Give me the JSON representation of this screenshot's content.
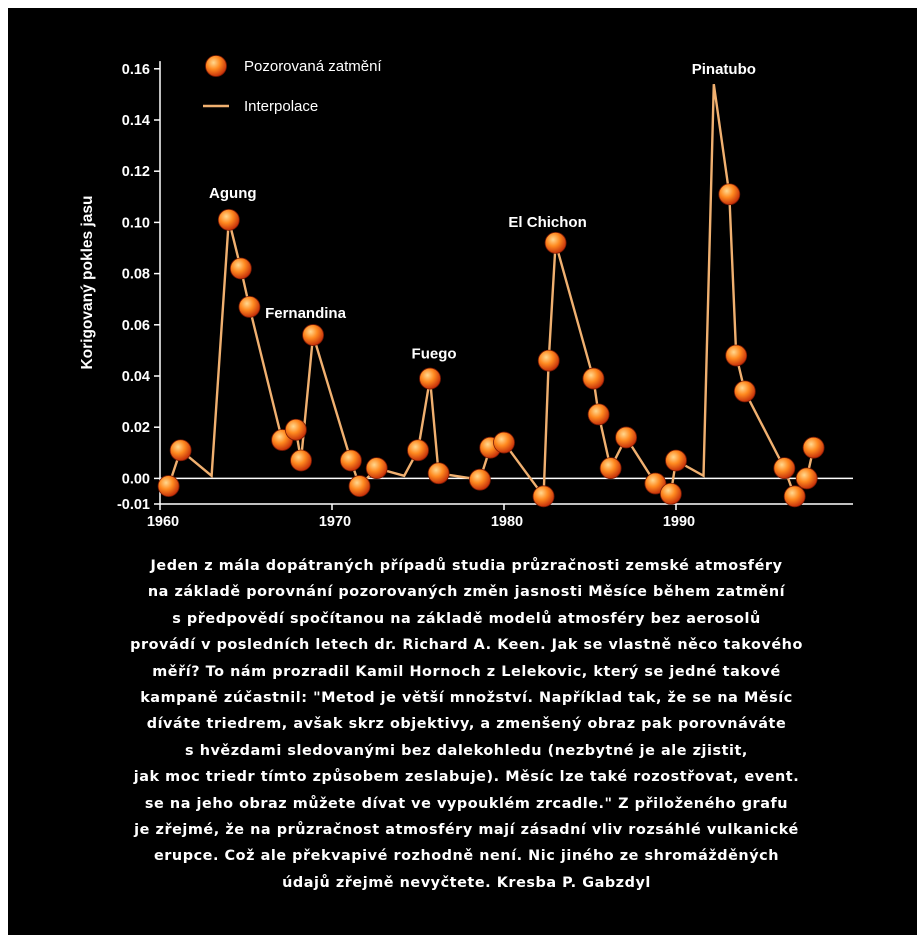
{
  "colors": {
    "background": "#000000",
    "line": "#f0b070",
    "marker_outer": "#c02808",
    "marker_inner": "#ff8a20",
    "marker_highlight": "#ffd890",
    "axis": "#ffffff",
    "text": "#ffffff"
  },
  "chart_data": {
    "type": "line",
    "ylabel": "Korigovaný pokles jasu",
    "xlim": [
      1960,
      2000
    ],
    "ylim": [
      -0.01,
      0.165
    ],
    "grid": false,
    "xticks": [
      {
        "value": 1960,
        "label": "1960"
      },
      {
        "value": 1970,
        "label": "1970"
      },
      {
        "value": 1980,
        "label": "1980"
      },
      {
        "value": 1990,
        "label": "1990"
      }
    ],
    "yticks": [
      {
        "value": -0.01,
        "label": "-0.01"
      },
      {
        "value": 0.0,
        "label": "0.00"
      },
      {
        "value": 0.02,
        "label": "0.02"
      },
      {
        "value": 0.04,
        "label": "0.04"
      },
      {
        "value": 0.06,
        "label": "0.06"
      },
      {
        "value": 0.08,
        "label": "0.08"
      },
      {
        "value": 0.1,
        "label": "0.10"
      },
      {
        "value": 0.12,
        "label": "0.12"
      },
      {
        "value": 0.14,
        "label": "0.14"
      },
      {
        "value": 0.16,
        "label": "0.16"
      }
    ],
    "legend": {
      "placement": "top-left",
      "entries": [
        {
          "label": "Pozorovaná zatmění",
          "kind": "marker"
        },
        {
          "label": "Interpolace",
          "kind": "line"
        }
      ]
    },
    "series": [
      {
        "name": "Pozorovaná zatmění",
        "points": [
          {
            "x": 1960.5,
            "y": -0.003
          },
          {
            "x": 1961.2,
            "y": 0.011
          },
          {
            "x": 1964.0,
            "y": 0.101
          },
          {
            "x": 1964.7,
            "y": 0.082
          },
          {
            "x": 1965.2,
            "y": 0.067
          },
          {
            "x": 1967.1,
            "y": 0.015
          },
          {
            "x": 1967.9,
            "y": 0.019
          },
          {
            "x": 1968.2,
            "y": 0.007
          },
          {
            "x": 1968.9,
            "y": 0.056
          },
          {
            "x": 1971.1,
            "y": 0.007
          },
          {
            "x": 1971.6,
            "y": -0.003
          },
          {
            "x": 1972.6,
            "y": 0.004
          },
          {
            "x": 1975.0,
            "y": 0.011
          },
          {
            "x": 1975.7,
            "y": 0.039
          },
          {
            "x": 1976.2,
            "y": 0.002
          },
          {
            "x": 1978.6,
            "y": -0.0005
          },
          {
            "x": 1979.2,
            "y": 0.012
          },
          {
            "x": 1980.0,
            "y": 0.014
          },
          {
            "x": 1982.3,
            "y": -0.007
          },
          {
            "x": 1982.6,
            "y": 0.046
          },
          {
            "x": 1983.0,
            "y": 0.092
          },
          {
            "x": 1985.2,
            "y": 0.039
          },
          {
            "x": 1985.5,
            "y": 0.025
          },
          {
            "x": 1986.2,
            "y": 0.004
          },
          {
            "x": 1987.1,
            "y": 0.016
          },
          {
            "x": 1988.8,
            "y": -0.002
          },
          {
            "x": 1989.7,
            "y": -0.006
          },
          {
            "x": 1990.0,
            "y": 0.007
          },
          {
            "x": 1993.1,
            "y": 0.111
          },
          {
            "x": 1993.5,
            "y": 0.048
          },
          {
            "x": 1994.0,
            "y": 0.034
          },
          {
            "x": 1996.3,
            "y": 0.004
          },
          {
            "x": 1996.9,
            "y": -0.007
          },
          {
            "x": 1997.6,
            "y": 0.0
          },
          {
            "x": 1998.0,
            "y": 0.012
          }
        ]
      },
      {
        "name": "Interpolace",
        "points": [
          {
            "x": 1960.5,
            "y": -0.003
          },
          {
            "x": 1961.2,
            "y": 0.011
          },
          {
            "x": 1963.0,
            "y": 0.001
          },
          {
            "x": 1964.0,
            "y": 0.101
          },
          {
            "x": 1964.7,
            "y": 0.082
          },
          {
            "x": 1965.2,
            "y": 0.067
          },
          {
            "x": 1967.1,
            "y": 0.015
          },
          {
            "x": 1967.9,
            "y": 0.019
          },
          {
            "x": 1968.2,
            "y": 0.007
          },
          {
            "x": 1968.9,
            "y": 0.056
          },
          {
            "x": 1971.1,
            "y": 0.007
          },
          {
            "x": 1971.6,
            "y": -0.003
          },
          {
            "x": 1972.6,
            "y": 0.004
          },
          {
            "x": 1974.2,
            "y": 0.001
          },
          {
            "x": 1975.0,
            "y": 0.011
          },
          {
            "x": 1975.7,
            "y": 0.039
          },
          {
            "x": 1976.2,
            "y": 0.002
          },
          {
            "x": 1978.6,
            "y": -0.0005
          },
          {
            "x": 1979.2,
            "y": 0.012
          },
          {
            "x": 1980.0,
            "y": 0.014
          },
          {
            "x": 1982.3,
            "y": -0.007
          },
          {
            "x": 1982.6,
            "y": 0.046
          },
          {
            "x": 1983.0,
            "y": 0.092
          },
          {
            "x": 1985.2,
            "y": 0.039
          },
          {
            "x": 1985.5,
            "y": 0.025
          },
          {
            "x": 1986.2,
            "y": 0.004
          },
          {
            "x": 1987.1,
            "y": 0.016
          },
          {
            "x": 1988.8,
            "y": -0.002
          },
          {
            "x": 1989.7,
            "y": -0.006
          },
          {
            "x": 1990.0,
            "y": 0.007
          },
          {
            "x": 1991.6,
            "y": 0.001
          },
          {
            "x": 1992.2,
            "y": 0.154
          },
          {
            "x": 1993.1,
            "y": 0.111
          },
          {
            "x": 1993.5,
            "y": 0.048
          },
          {
            "x": 1994.0,
            "y": 0.034
          },
          {
            "x": 1996.3,
            "y": 0.004
          },
          {
            "x": 1996.9,
            "y": -0.007
          },
          {
            "x": 1997.6,
            "y": 0.0
          },
          {
            "x": 1998.0,
            "y": 0.012
          }
        ]
      }
    ],
    "annotations": [
      {
        "text": "Agung",
        "x": 1964.0,
        "y": 0.101
      },
      {
        "text": "Fernandina",
        "x": 1968.9,
        "y": 0.056
      },
      {
        "text": "Fuego",
        "x": 1975.7,
        "y": 0.039
      },
      {
        "text": "El Chichon",
        "x": 1983.0,
        "y": 0.092
      },
      {
        "text": "Pinatubo",
        "x": 1992.2,
        "y": 0.154
      }
    ]
  },
  "caption": {
    "lines": [
      "Jeden z mála dopátraných případů studia průzračnosti zemské atmosféry",
      "na základě porovnání pozorovaných změn jasnosti Měsíce během zatmění",
      "s předpovědí spočítanou na základě modelů atmosféry bez aerosolů",
      "provádí v posledních letech dr. Richard A. Keen. Jak se vlastně něco takového",
      "měří? To nám prozradil Kamil Hornoch z Lelekovic, který se jedné takové",
      "kampaně zúčastnil: \"Metod je větší množství. Například tak, že se na Měsíc",
      "díváte triedrem, avšak skrz objektivy, a zmenšený obraz pak porovnáváte",
      "s hvězdami sledovanými bez dalekohledu (nezbytné je ale zjistit,",
      "jak moc triedr tímto způsobem zeslabuje). Měsíc lze také rozostřovat, event.",
      "se na jeho obraz můžete dívat ve vypouklém zrcadle.\" Z přiloženého grafu",
      "je zřejmé, že na průzračnost atmosféry mají zásadní vliv rozsáhlé vulkanické",
      "erupce. Což ale překvapivé rozhodně není. Nic jiného ze shromážděných",
      "údajů zřejmě nevyčtete. Kresba P. Gabzdyl"
    ]
  }
}
